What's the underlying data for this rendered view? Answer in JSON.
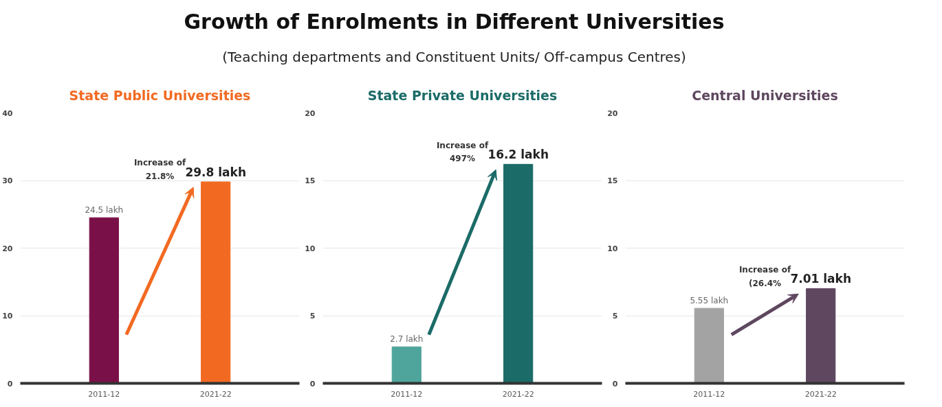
{
  "chart_data": [
    {
      "type": "other",
      "title": "Growth of Enrolments in Different Universities",
      "subtitle": "(Teaching departments and Constituent Units/ Off-campus Centres)"
    },
    {
      "type": "bar",
      "title": "State Public Universities",
      "categories": [
        "2011-12",
        "2021-22"
      ],
      "values": [
        24.5,
        29.8
      ],
      "colors": [
        "#7a1048",
        "#f26a21"
      ],
      "value_labels": [
        "24.5 lakh",
        "29.8 lakh"
      ],
      "ylim": [
        0,
        40
      ],
      "yticks": [
        0,
        10,
        20,
        30,
        40
      ],
      "grid": "y",
      "annotations": [
        "Increase of\n21.8%"
      ]
    },
    {
      "type": "bar",
      "title": "State Private Universities",
      "categories": [
        "2011-12",
        "2021-22"
      ],
      "values": [
        2.7,
        16.2
      ],
      "colors": [
        "#4fa59c",
        "#1b6b68"
      ],
      "value_labels": [
        "2.7 lakh",
        "16.2 lakh"
      ],
      "ylim": [
        0,
        20
      ],
      "yticks": [
        0,
        5,
        10,
        15,
        20
      ],
      "grid": "y",
      "annotations": [
        "Increase of\n497%"
      ]
    },
    {
      "type": "bar",
      "title": "Central Universities",
      "categories": [
        "2011-12",
        "2021-22"
      ],
      "values": [
        5.55,
        7.01
      ],
      "colors": [
        "#a3a3a3",
        "#5e475f"
      ],
      "value_labels": [
        "5.55 lakh",
        "7.01 lakh"
      ],
      "ylim": [
        0,
        20
      ],
      "yticks": [
        0,
        5,
        10,
        15,
        20
      ],
      "grid": "y",
      "annotations": [
        "Increase of\n(26.4%"
      ]
    }
  ]
}
